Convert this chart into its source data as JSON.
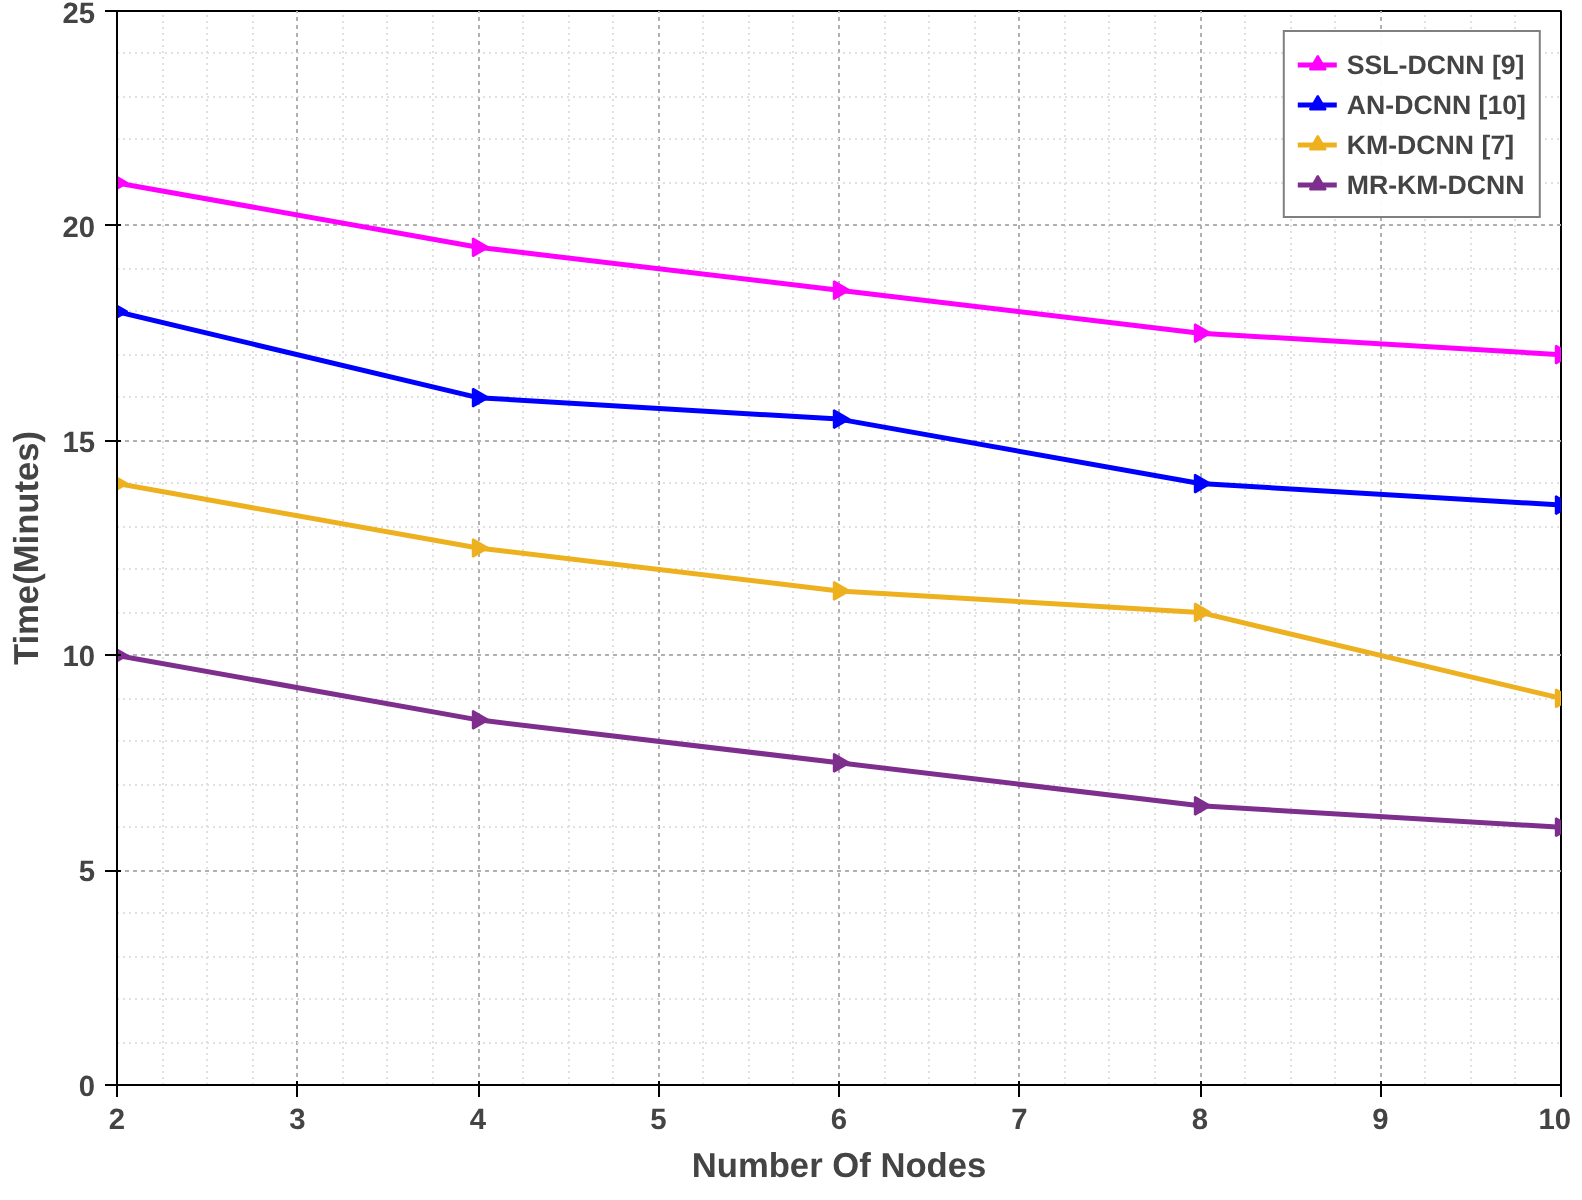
{
  "chart_data": {
    "type": "line",
    "xlabel": "Number Of Nodes",
    "ylabel": "Time(Minutes)",
    "x": [
      2,
      4,
      6,
      8,
      10
    ],
    "series": [
      {
        "name": "SSL-DCNN [9]",
        "color": "#ff00ff",
        "values": [
          21,
          19.5,
          18.5,
          17.5,
          17
        ]
      },
      {
        "name": "AN-DCNN [10]",
        "color": "#0000ff",
        "values": [
          18,
          16,
          15.5,
          14,
          13.5
        ]
      },
      {
        "name": "KM-DCNN [7]",
        "color": "#edb120",
        "values": [
          14,
          12.5,
          11.5,
          11,
          9
        ]
      },
      {
        "name": "MR-KM-DCNN",
        "color": "#7e2f8e",
        "values": [
          10,
          8.5,
          7.5,
          6.5,
          6
        ]
      }
    ],
    "xlim": [
      2,
      10
    ],
    "ylim": [
      0,
      25
    ],
    "xticks": [
      2,
      3,
      4,
      5,
      6,
      7,
      8,
      9,
      10
    ],
    "yticks": [
      0,
      5,
      10,
      15,
      20,
      25
    ],
    "grid": true,
    "legend": "top right",
    "marker": "triangle",
    "line_style": "solid"
  }
}
